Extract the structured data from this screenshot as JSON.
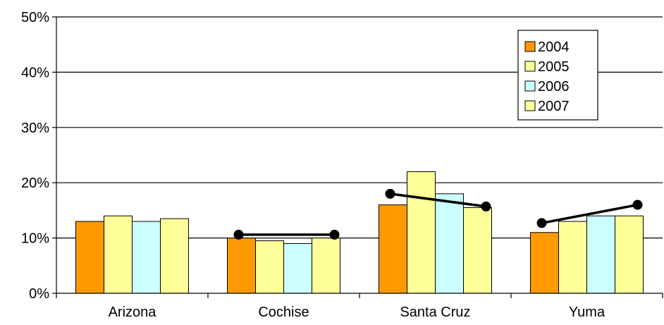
{
  "chart_data": {
    "type": "bar",
    "categories": [
      "Arizona",
      "Cochise",
      "Santa Cruz",
      "Yuma"
    ],
    "series": [
      {
        "name": "2004",
        "color": "#ff9900",
        "values": [
          13,
          10,
          16,
          11
        ]
      },
      {
        "name": "2005",
        "color": "#ffff99",
        "values": [
          14,
          9.5,
          22,
          13
        ]
      },
      {
        "name": "2006",
        "color": "#ccffff",
        "values": [
          13,
          9,
          18,
          14
        ]
      },
      {
        "name": "2007",
        "color": "#ffff99",
        "values": [
          13.5,
          10,
          15.5,
          14
        ]
      }
    ],
    "overlay_lines": [
      {
        "category": "Cochise",
        "from": 10.6,
        "to": 10.6
      },
      {
        "category": "Santa Cruz",
        "from": 18,
        "to": 15.7
      },
      {
        "category": "Yuma",
        "from": 12.7,
        "to": 16
      }
    ],
    "ylim": [
      0,
      50
    ],
    "yticks": [
      "0%",
      "10%",
      "20%",
      "30%",
      "40%",
      "50%"
    ],
    "ytick_values": [
      0,
      10,
      20,
      30,
      40,
      50
    ],
    "grid": true,
    "legend_position": "top-right"
  }
}
